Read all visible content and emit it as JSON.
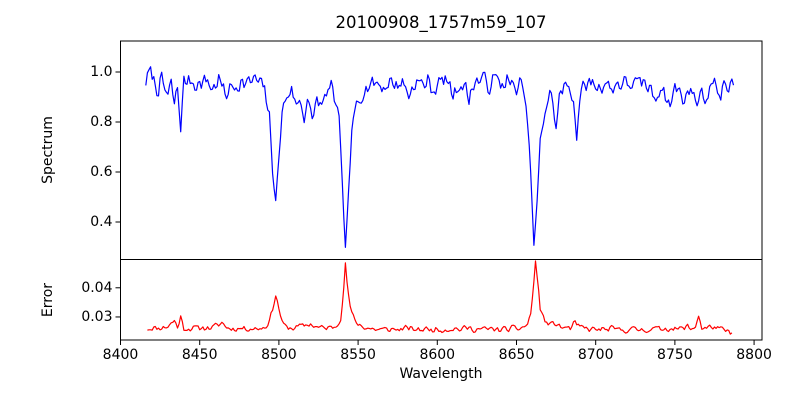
{
  "figure": {
    "background": "#ffffff",
    "text_color": "#000000",
    "spine_color": "#000000"
  },
  "chart_data": {
    "type": "line",
    "title": "20100908_1757m59_107",
    "xlabel": "Wavelength",
    "xlim": [
      8400,
      8805
    ],
    "x_ticks": [
      8400,
      8450,
      8500,
      8550,
      8600,
      8650,
      8700,
      8750,
      8800
    ],
    "x_tick_labels": [
      "8400",
      "8450",
      "8500",
      "8550",
      "8600",
      "8650",
      "8700",
      "8750",
      "8800"
    ],
    "sample_step": 1.0,
    "grid": false,
    "legend": "none",
    "panels": [
      {
        "name": "spectrum",
        "ylabel": "Spectrum",
        "color": "#0000ff",
        "ylim": [
          0.25,
          1.124
        ],
        "y_ticks": [
          1.0,
          0.8,
          0.6,
          0.4
        ],
        "y_tick_labels": [
          "1.0",
          "0.8",
          "0.6",
          "0.4"
        ],
        "noise": {
          "amplitude": 0.05,
          "seed": 7,
          "taper": {
            "lo": 0.45,
            "hi": 0.95,
            "min": 0.3
          }
        },
        "series_points": [
          [
            8416,
            0.96
          ],
          [
            8419,
            1.0
          ],
          [
            8421,
            0.97
          ],
          [
            8424,
            0.93
          ],
          [
            8426,
            0.96
          ],
          [
            8428,
            0.93
          ],
          [
            8430,
            0.9
          ],
          [
            8432,
            0.95
          ],
          [
            8434,
            0.87
          ],
          [
            8436,
            0.94
          ],
          [
            8438,
            0.775
          ],
          [
            8440,
            0.96
          ],
          [
            8444,
            0.97
          ],
          [
            8450,
            0.95
          ],
          [
            8455,
            0.97
          ],
          [
            8458,
            0.93
          ],
          [
            8462,
            0.97
          ],
          [
            8466,
            0.91
          ],
          [
            8469,
            0.93
          ],
          [
            8472,
            0.95
          ],
          [
            8476,
            0.96
          ],
          [
            8480,
            0.95
          ],
          [
            8484,
            0.97
          ],
          [
            8488,
            0.95
          ],
          [
            8491,
            0.93
          ],
          [
            8494,
            0.82
          ],
          [
            8496,
            0.6
          ],
          [
            8498,
            0.49
          ],
          [
            8500,
            0.65
          ],
          [
            8502,
            0.84
          ],
          [
            8505,
            0.91
          ],
          [
            8508,
            0.93
          ],
          [
            8511,
            0.86
          ],
          [
            8513,
            0.9
          ],
          [
            8516,
            0.82
          ],
          [
            8518,
            0.89
          ],
          [
            8521,
            0.8
          ],
          [
            8524,
            0.9
          ],
          [
            8527,
            0.85
          ],
          [
            8530,
            0.92
          ],
          [
            8533,
            0.93
          ],
          [
            8536,
            0.88
          ],
          [
            8538,
            0.8
          ],
          [
            8540,
            0.55
          ],
          [
            8542,
            0.295
          ],
          [
            8544,
            0.52
          ],
          [
            8546,
            0.75
          ],
          [
            8549,
            0.88
          ],
          [
            8553,
            0.93
          ],
          [
            8557,
            0.95
          ],
          [
            8562,
            0.96
          ],
          [
            8566,
            0.94
          ],
          [
            8570,
            0.96
          ],
          [
            8574,
            0.95
          ],
          [
            8578,
            0.96
          ],
          [
            8582,
            0.91
          ],
          [
            8586,
            0.96
          ],
          [
            8590,
            0.95
          ],
          [
            8594,
            0.96
          ],
          [
            8598,
            0.93
          ],
          [
            8602,
            0.96
          ],
          [
            8606,
            0.97
          ],
          [
            8610,
            0.91
          ],
          [
            8614,
            0.96
          ],
          [
            8618,
            0.93
          ],
          [
            8620,
            0.89
          ],
          [
            8623,
            0.96
          ],
          [
            8628,
            0.97
          ],
          [
            8632,
            0.95
          ],
          [
            8636,
            0.97
          ],
          [
            8640,
            0.95
          ],
          [
            8644,
            0.97
          ],
          [
            8648,
            0.93
          ],
          [
            8652,
            0.95
          ],
          [
            8655,
            0.9
          ],
          [
            8657,
            0.8
          ],
          [
            8659,
            0.6
          ],
          [
            8661,
            0.3
          ],
          [
            8663,
            0.48
          ],
          [
            8665,
            0.72
          ],
          [
            8668,
            0.85
          ],
          [
            8671,
            0.91
          ],
          [
            8673,
            0.88
          ],
          [
            8675,
            0.77
          ],
          [
            8677,
            0.9
          ],
          [
            8680,
            0.93
          ],
          [
            8683,
            0.95
          ],
          [
            8686,
            0.9
          ],
          [
            8688,
            0.735
          ],
          [
            8690,
            0.9
          ],
          [
            8694,
            0.95
          ],
          [
            8698,
            0.96
          ],
          [
            8702,
            0.94
          ],
          [
            8706,
            0.96
          ],
          [
            8710,
            0.93
          ],
          [
            8714,
            0.96
          ],
          [
            8718,
            0.95
          ],
          [
            8722,
            0.96
          ],
          [
            8726,
            0.94
          ],
          [
            8730,
            0.96
          ],
          [
            8734,
            0.93
          ],
          [
            8738,
            0.9
          ],
          [
            8741,
            0.95
          ],
          [
            8744,
            0.91
          ],
          [
            8747,
            0.86
          ],
          [
            8750,
            0.94
          ],
          [
            8753,
            0.92
          ],
          [
            8757,
            0.89
          ],
          [
            8760,
            0.95
          ],
          [
            8763,
            0.87
          ],
          [
            8766,
            0.93
          ],
          [
            8769,
            0.89
          ],
          [
            8772,
            0.94
          ],
          [
            8776,
            0.95
          ],
          [
            8779,
            0.91
          ],
          [
            8782,
            0.95
          ],
          [
            8785,
            0.93
          ],
          [
            8787,
            0.96
          ]
        ]
      },
      {
        "name": "error",
        "ylabel": "Error",
        "color": "#ff0000",
        "ylim": [
          0.0221,
          0.0497
        ],
        "y_ticks": [
          0.04,
          0.03
        ],
        "y_tick_labels": [
          "0.04",
          "0.03"
        ],
        "noise": {
          "amplitude": 0.0014,
          "seed": 11
        },
        "series_points": [
          [
            8417,
            0.0262
          ],
          [
            8424,
            0.0262
          ],
          [
            8430,
            0.0268
          ],
          [
            8434,
            0.0288
          ],
          [
            8436,
            0.0265
          ],
          [
            8438,
            0.03
          ],
          [
            8440,
            0.0262
          ],
          [
            8446,
            0.026
          ],
          [
            8452,
            0.0264
          ],
          [
            8458,
            0.0262
          ],
          [
            8464,
            0.028
          ],
          [
            8468,
            0.0262
          ],
          [
            8474,
            0.026
          ],
          [
            8480,
            0.0262
          ],
          [
            8486,
            0.026
          ],
          [
            8491,
            0.0265
          ],
          [
            8494,
            0.0285
          ],
          [
            8496,
            0.033
          ],
          [
            8498,
            0.0374
          ],
          [
            8500,
            0.033
          ],
          [
            8502,
            0.028
          ],
          [
            8505,
            0.0264
          ],
          [
            8510,
            0.0262
          ],
          [
            8515,
            0.027
          ],
          [
            8520,
            0.0276
          ],
          [
            8524,
            0.0264
          ],
          [
            8528,
            0.0262
          ],
          [
            8532,
            0.0262
          ],
          [
            8536,
            0.027
          ],
          [
            8539,
            0.03
          ],
          [
            8541,
            0.04
          ],
          [
            8542,
            0.0478
          ],
          [
            8543,
            0.042
          ],
          [
            8545,
            0.033
          ],
          [
            8548,
            0.0285
          ],
          [
            8552,
            0.027
          ],
          [
            8556,
            0.0262
          ],
          [
            8560,
            0.0258
          ],
          [
            8565,
            0.0256
          ],
          [
            8570,
            0.0258
          ],
          [
            8575,
            0.0257
          ],
          [
            8580,
            0.026
          ],
          [
            8585,
            0.0258
          ],
          [
            8590,
            0.0257
          ],
          [
            8595,
            0.0258
          ],
          [
            8600,
            0.0257
          ],
          [
            8605,
            0.0258
          ],
          [
            8610,
            0.026
          ],
          [
            8615,
            0.0258
          ],
          [
            8620,
            0.0262
          ],
          [
            8625,
            0.0258
          ],
          [
            8630,
            0.0257
          ],
          [
            8635,
            0.0258
          ],
          [
            8640,
            0.0257
          ],
          [
            8645,
            0.0258
          ],
          [
            8650,
            0.026
          ],
          [
            8654,
            0.0264
          ],
          [
            8657,
            0.0275
          ],
          [
            8659,
            0.031
          ],
          [
            8661,
            0.042
          ],
          [
            8662,
            0.049
          ],
          [
            8663,
            0.044
          ],
          [
            8665,
            0.033
          ],
          [
            8668,
            0.0285
          ],
          [
            8671,
            0.0272
          ],
          [
            8674,
            0.028
          ],
          [
            8677,
            0.0268
          ],
          [
            8680,
            0.0263
          ],
          [
            8684,
            0.0262
          ],
          [
            8687,
            0.0278
          ],
          [
            8690,
            0.0264
          ],
          [
            8695,
            0.0258
          ],
          [
            8700,
            0.0257
          ],
          [
            8705,
            0.0256
          ],
          [
            8710,
            0.0258
          ],
          [
            8715,
            0.0256
          ],
          [
            8720,
            0.0257
          ],
          [
            8725,
            0.0256
          ],
          [
            8730,
            0.0258
          ],
          [
            8735,
            0.0257
          ],
          [
            8740,
            0.026
          ],
          [
            8745,
            0.0262
          ],
          [
            8750,
            0.0258
          ],
          [
            8755,
            0.026
          ],
          [
            8758,
            0.0268
          ],
          [
            8760,
            0.0258
          ],
          [
            8763,
            0.027
          ],
          [
            8765,
            0.0305
          ],
          [
            8767,
            0.0262
          ],
          [
            8770,
            0.026
          ],
          [
            8773,
            0.0268
          ],
          [
            8776,
            0.0262
          ],
          [
            8779,
            0.0256
          ],
          [
            8782,
            0.0252
          ],
          [
            8784,
            0.0248
          ],
          [
            8786,
            0.0246
          ]
        ]
      }
    ]
  }
}
